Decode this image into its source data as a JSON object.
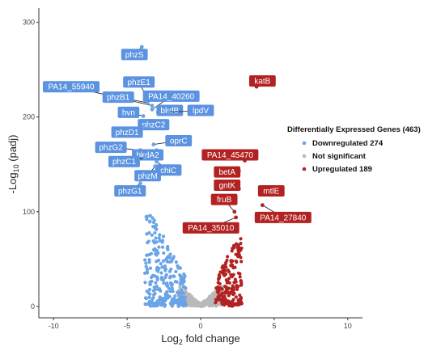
{
  "chart_data": {
    "type": "scatter",
    "title": "",
    "xlabel_main": "Log",
    "xlabel_sub": "2",
    "xlabel_rest": " fold change",
    "ylabel_main": "-Log",
    "ylabel_sub": "10",
    "ylabel_rest": " (padj)",
    "xlim": [
      -11,
      11
    ],
    "ylim": [
      -12,
      315
    ],
    "xticks": [
      -10,
      -5,
      0,
      5,
      10
    ],
    "yticks": [
      0,
      100,
      200,
      300
    ],
    "grid": false,
    "colors": {
      "down": "#6aa3e8",
      "ns": "#b9b9b9",
      "up": "#b22222",
      "down_label_bg": "#5b93e0",
      "up_label_bg": "#b22222"
    },
    "legend": {
      "title": "Differentially Expressed Genes (463)",
      "position": "right",
      "entries": [
        {
          "key": "down",
          "label": "Downregulated 274"
        },
        {
          "key": "ns",
          "label": "Not significant"
        },
        {
          "key": "up",
          "label": "Upregulated 189"
        }
      ]
    },
    "labeled_genes": [
      {
        "name": "phzS",
        "x": -4.0,
        "y": 274,
        "lx": -4.5,
        "ly": 266,
        "cls": "down"
      },
      {
        "name": "phzE1",
        "x": -3.7,
        "y": 222,
        "lx": -4.2,
        "ly": 237,
        "cls": "down"
      },
      {
        "name": "PA14_55940",
        "x": -3.3,
        "y": 212,
        "lx": -8.8,
        "ly": 232,
        "cls": "down"
      },
      {
        "name": "phzB1",
        "x": -3.6,
        "y": 215,
        "lx": -5.6,
        "ly": 221,
        "cls": "down"
      },
      {
        "name": "PA14_40260",
        "x": -3.3,
        "y": 208,
        "lx": -2.0,
        "ly": 222,
        "cls": "down"
      },
      {
        "name": "hvn",
        "x": -3.9,
        "y": 201,
        "lx": -4.9,
        "ly": 205,
        "cls": "down"
      },
      {
        "name": "bkdB",
        "x": -2.9,
        "y": 205,
        "lx": -2.1,
        "ly": 207,
        "cls": "down"
      },
      {
        "name": "lpdV",
        "x": -2.2,
        "y": 205,
        "lx": 0.0,
        "ly": 207,
        "cls": "down"
      },
      {
        "name": "phzC2",
        "x": -3.5,
        "y": 196,
        "lx": -3.2,
        "ly": 192,
        "cls": "down"
      },
      {
        "name": "phzD1",
        "x": -3.9,
        "y": 189,
        "lx": -5.0,
        "ly": 184,
        "cls": "down"
      },
      {
        "name": "oprC",
        "x": -3.2,
        "y": 171,
        "lx": -1.5,
        "ly": 175,
        "cls": "down"
      },
      {
        "name": "phzG2",
        "x": -4.1,
        "y": 165,
        "lx": -6.1,
        "ly": 168,
        "cls": "down"
      },
      {
        "name": "bkdA2",
        "x": -3.0,
        "y": 165,
        "lx": -3.6,
        "ly": 160,
        "cls": "down"
      },
      {
        "name": "phzC1",
        "x": -3.8,
        "y": 157,
        "lx": -5.2,
        "ly": 153,
        "cls": "down"
      },
      {
        "name": "chiC",
        "x": -3.0,
        "y": 153,
        "lx": -2.2,
        "ly": 144,
        "cls": "down"
      },
      {
        "name": "phzM",
        "x": -3.1,
        "y": 148,
        "lx": -3.6,
        "ly": 138,
        "cls": "down"
      },
      {
        "name": "phzG1",
        "x": -4.1,
        "y": 130,
        "lx": -4.8,
        "ly": 122,
        "cls": "down"
      },
      {
        "name": "katB",
        "x": 3.8,
        "y": 232,
        "lx": 4.2,
        "ly": 238,
        "cls": "up"
      },
      {
        "name": "PA14_45470",
        "x": 3.0,
        "y": 154,
        "lx": 2.0,
        "ly": 160,
        "cls": "up"
      },
      {
        "name": "betA",
        "x": 2.6,
        "y": 143,
        "lx": 1.8,
        "ly": 142,
        "cls": "up"
      },
      {
        "name": "gntK",
        "x": 2.6,
        "y": 124,
        "lx": 1.8,
        "ly": 128,
        "cls": "up"
      },
      {
        "name": "mtlE",
        "x": 4.3,
        "y": 118,
        "lx": 4.8,
        "ly": 122,
        "cls": "up"
      },
      {
        "name": "fruB",
        "x": 2.3,
        "y": 100,
        "lx": 1.6,
        "ly": 113,
        "cls": "up"
      },
      {
        "name": "PA14_27840",
        "x": 4.2,
        "y": 107,
        "lx": 5.6,
        "ly": 94,
        "cls": "up"
      },
      {
        "name": "PA14_35010",
        "x": 2.4,
        "y": 94,
        "lx": 0.7,
        "ly": 83,
        "cls": "up"
      }
    ]
  }
}
